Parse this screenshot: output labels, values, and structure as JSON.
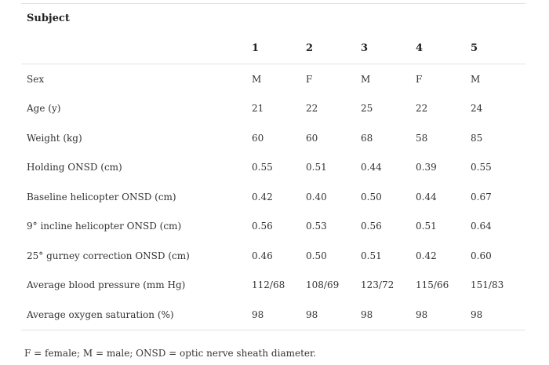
{
  "table": {
    "subject_label": "Subject",
    "subject_numbers": [
      "1",
      "2",
      "3",
      "4",
      "5"
    ],
    "rows": [
      {
        "label": "Sex",
        "values": [
          "M",
          "F",
          "M",
          "F",
          "M"
        ]
      },
      {
        "label": "Age (y)",
        "values": [
          "21",
          "22",
          "25",
          "22",
          "24"
        ]
      },
      {
        "label": "Weight (kg)",
        "values": [
          "60",
          "60",
          "68",
          "58",
          "85"
        ]
      },
      {
        "label": "Holding ONSD (cm)",
        "values": [
          "0.55",
          "0.51",
          "0.44",
          "0.39",
          "0.55"
        ]
      },
      {
        "label": "Baseline helicopter ONSD (cm)",
        "values": [
          "0.42",
          "0.40",
          "0.50",
          "0.44",
          "0.67"
        ]
      },
      {
        "label": "9° incline helicopter ONSD (cm)",
        "values": [
          "0.56",
          "0.53",
          "0.56",
          "0.51",
          "0.64"
        ]
      },
      {
        "label": "25° gurney correction ONSD (cm)",
        "values": [
          "0.46",
          "0.50",
          "0.51",
          "0.42",
          "0.60"
        ]
      },
      {
        "label": "Average blood pressure (mm Hg)",
        "values": [
          "112/68",
          "108/69",
          "123/72",
          "115/66",
          "151/83"
        ]
      },
      {
        "label": "Average oxygen saturation (%)",
        "values": [
          "98",
          "98",
          "98",
          "98",
          "98"
        ]
      }
    ]
  },
  "footnote": "F = female; M = male; ONSD = optic nerve sheath diameter."
}
